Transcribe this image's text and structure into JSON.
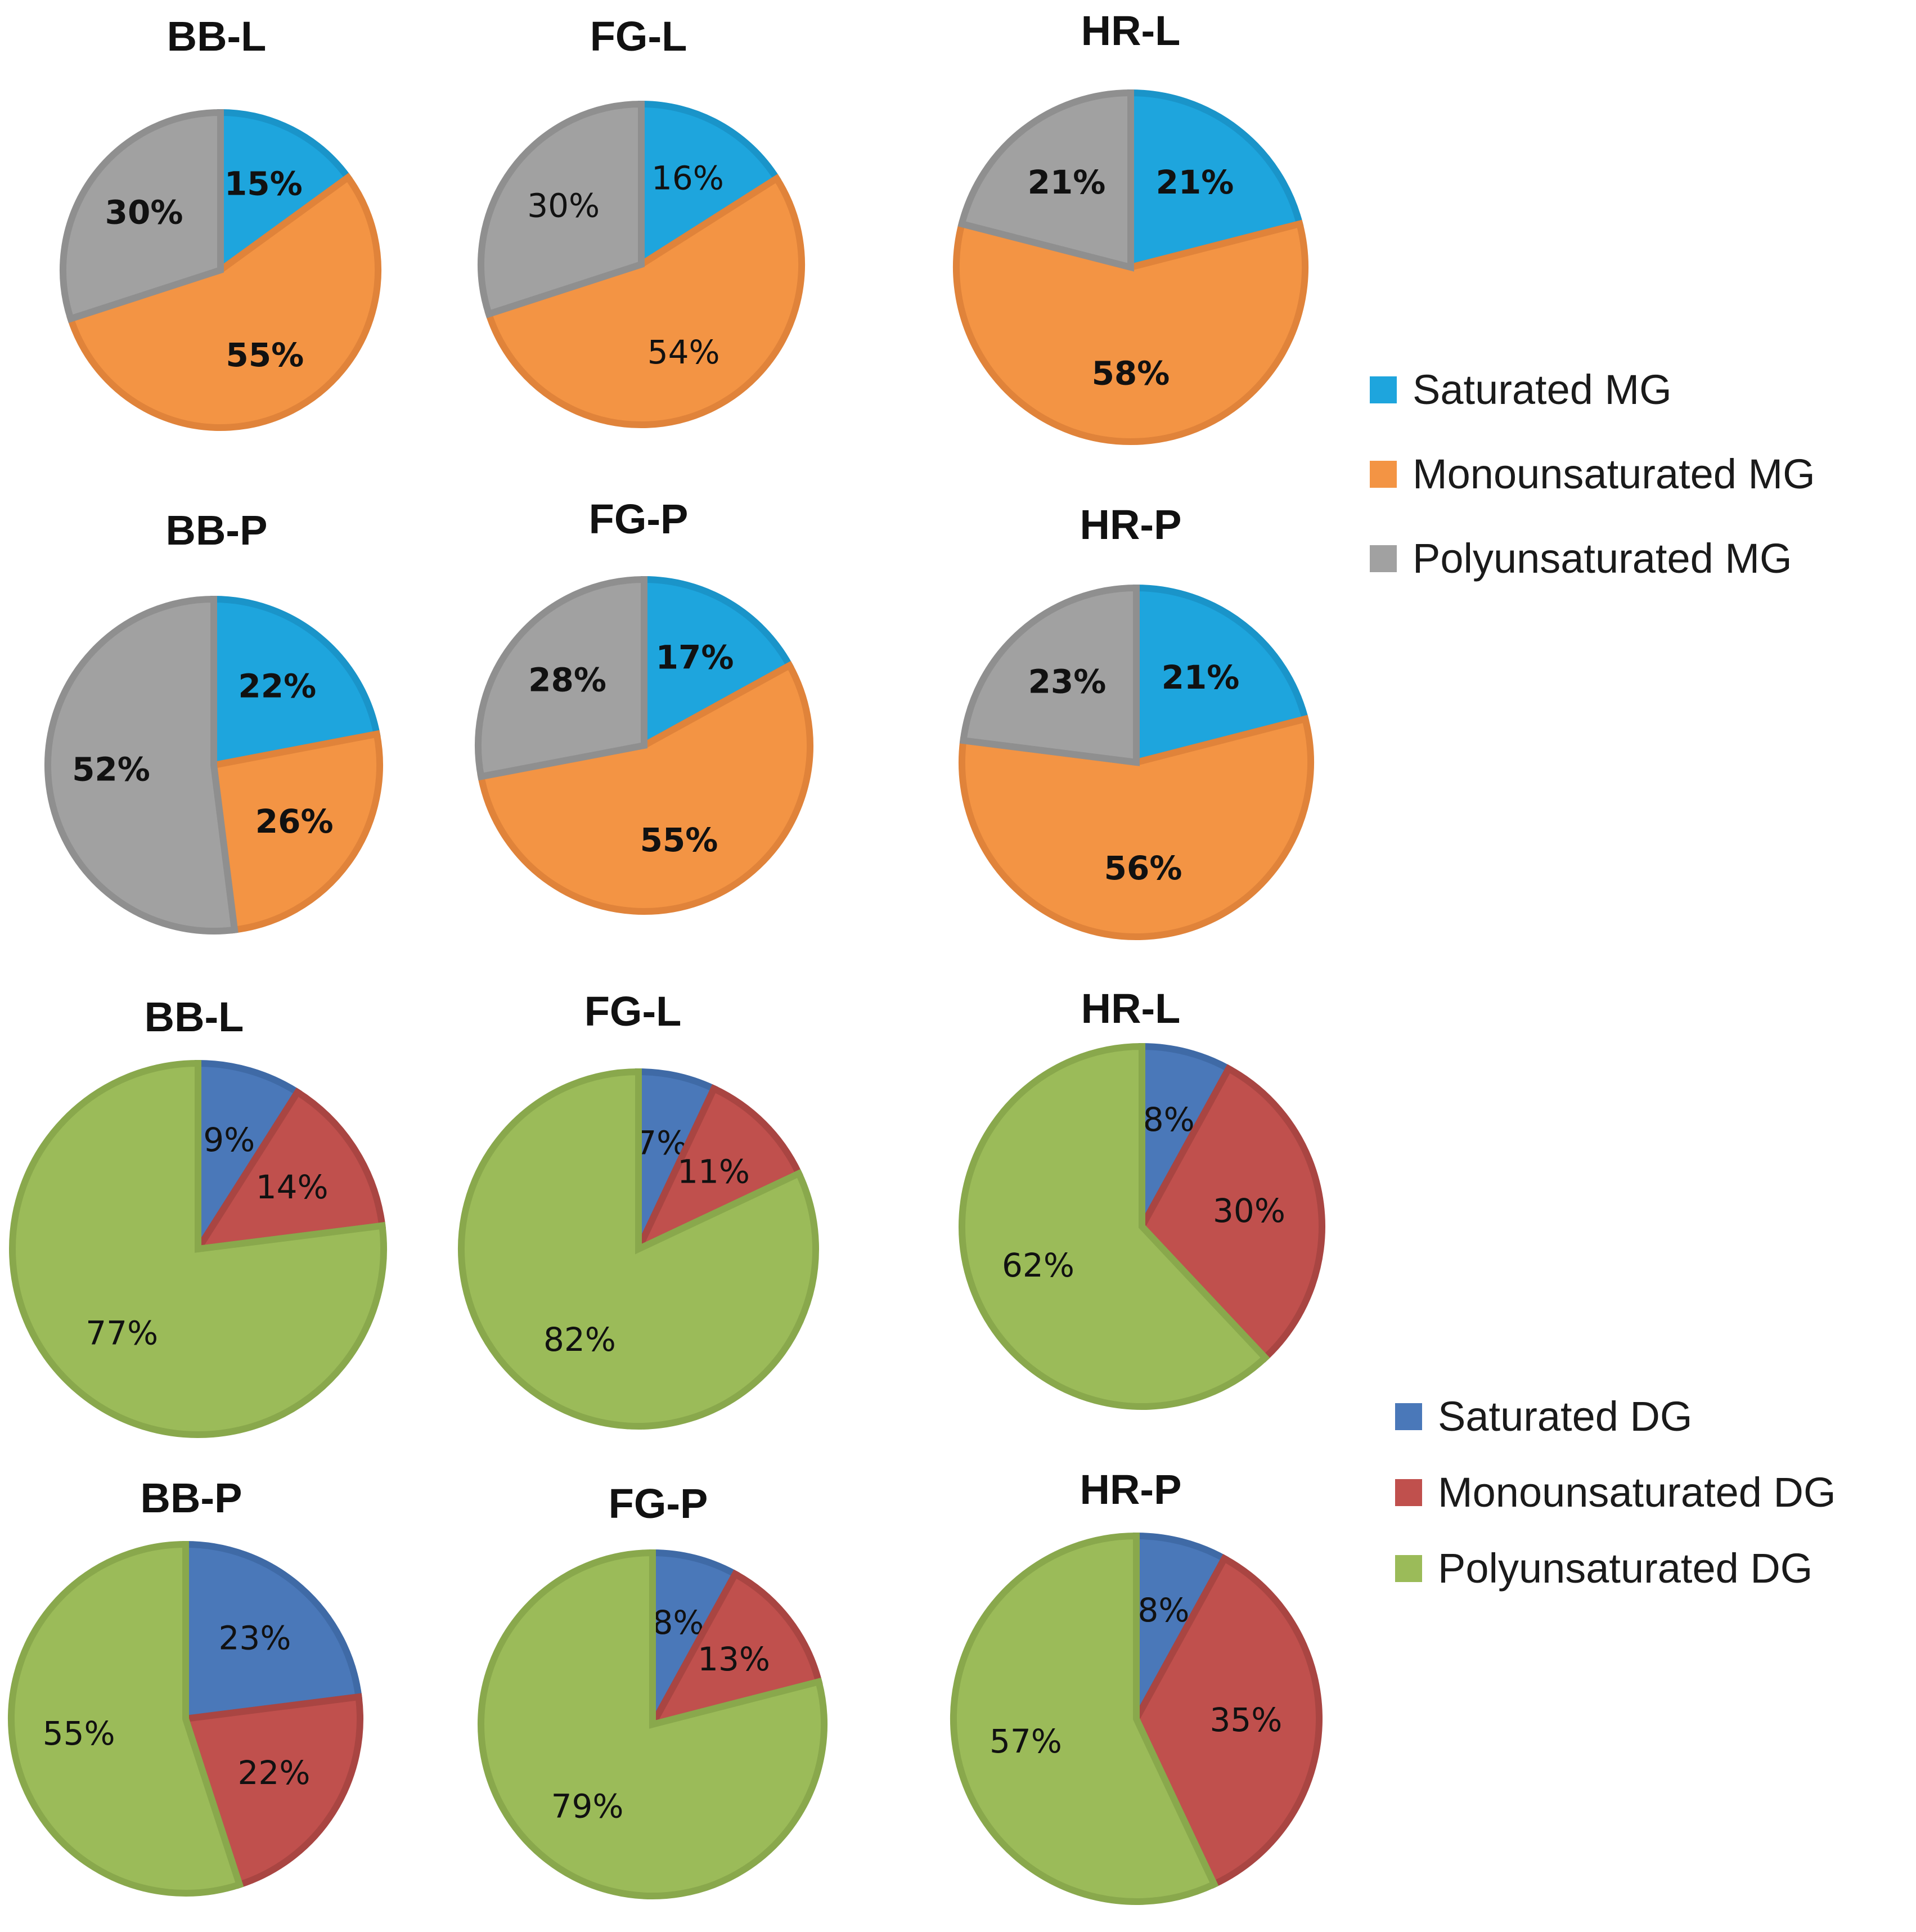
{
  "legends": {
    "mg": [
      {
        "label": "Saturated MG",
        "color": "#1ea5dd"
      },
      {
        "label": "Monounsaturated MG",
        "color": "#f39444"
      },
      {
        "label": "Polyunsaturated MG",
        "color": "#a1a1a1"
      }
    ],
    "dg": [
      {
        "label": "Saturated DG",
        "color": "#4a78b9"
      },
      {
        "label": "Monounsaturated DG",
        "color": "#c0504d"
      },
      {
        "label": "Polyunsaturated DG",
        "color": "#9bbb59"
      }
    ]
  },
  "chart_data": [
    {
      "type": "pie",
      "title": "BB-L",
      "group": "mg",
      "labels": [
        "Saturated MG",
        "Monounsaturated MG",
        "Polyunsaturated MG"
      ],
      "values": [
        15,
        55,
        30
      ],
      "value_labels": [
        "15%",
        "55%",
        "30%"
      ],
      "bold_labels": true
    },
    {
      "type": "pie",
      "title": "FG-L",
      "group": "mg",
      "labels": [
        "Saturated MG",
        "Monounsaturated MG",
        "Polyunsaturated MG"
      ],
      "values": [
        16,
        54,
        30
      ],
      "value_labels": [
        "16%",
        "54%",
        "30%"
      ],
      "bold_labels": false
    },
    {
      "type": "pie",
      "title": "HR-L",
      "group": "mg",
      "labels": [
        "Saturated MG",
        "Monounsaturated MG",
        "Polyunsaturated MG"
      ],
      "values": [
        21,
        58,
        21
      ],
      "value_labels": [
        "21%",
        "58%",
        "21%"
      ],
      "bold_labels": true
    },
    {
      "type": "pie",
      "title": "BB-P",
      "group": "mg",
      "labels": [
        "Saturated MG",
        "Monounsaturated MG",
        "Polyunsaturated MG"
      ],
      "values": [
        22,
        26,
        52
      ],
      "value_labels": [
        "22%",
        "26%",
        "52%"
      ],
      "bold_labels": true
    },
    {
      "type": "pie",
      "title": "FG-P",
      "group": "mg",
      "labels": [
        "Saturated MG",
        "Monounsaturated MG",
        "Polyunsaturated MG"
      ],
      "values": [
        17,
        55,
        28
      ],
      "value_labels": [
        "17%",
        "55%",
        "28%"
      ],
      "bold_labels": true
    },
    {
      "type": "pie",
      "title": "HR-P",
      "group": "mg",
      "labels": [
        "Saturated MG",
        "Monounsaturated MG",
        "Polyunsaturated MG"
      ],
      "values": [
        21,
        56,
        23
      ],
      "value_labels": [
        "21%",
        "56%",
        "23%"
      ],
      "bold_labels": true
    },
    {
      "type": "pie",
      "title": "BB-L",
      "group": "dg",
      "labels": [
        "Saturated DG",
        "Monounsaturated DG",
        "Polyunsaturated DG"
      ],
      "values": [
        9,
        14,
        77
      ],
      "value_labels": [
        "9%",
        "14%",
        "77%"
      ],
      "bold_labels": false
    },
    {
      "type": "pie",
      "title": "FG-L",
      "group": "dg",
      "labels": [
        "Saturated DG",
        "Monounsaturated DG",
        "Polyunsaturated DG"
      ],
      "values": [
        7,
        11,
        82
      ],
      "value_labels": [
        "7%",
        "11%",
        "82%"
      ],
      "bold_labels": false
    },
    {
      "type": "pie",
      "title": "HR-L",
      "group": "dg",
      "labels": [
        "Saturated DG",
        "Monounsaturated DG",
        "Polyunsaturated DG"
      ],
      "values": [
        8,
        30,
        62
      ],
      "value_labels": [
        "8%",
        "30%",
        "62%"
      ],
      "bold_labels": false
    },
    {
      "type": "pie",
      "title": "BB-P",
      "group": "dg",
      "labels": [
        "Saturated DG",
        "Monounsaturated DG",
        "Polyunsaturated DG"
      ],
      "values": [
        23,
        22,
        55
      ],
      "value_labels": [
        "23%",
        "22%",
        "55%"
      ],
      "bold_labels": false
    },
    {
      "type": "pie",
      "title": "FG-P",
      "group": "dg",
      "labels": [
        "Saturated DG",
        "Monounsaturated DG",
        "Polyunsaturated DG"
      ],
      "values": [
        8,
        13,
        79
      ],
      "value_labels": [
        "8%",
        "13%",
        "79%"
      ],
      "bold_labels": false
    },
    {
      "type": "pie",
      "title": "HR-P",
      "group": "dg",
      "labels": [
        "Saturated DG",
        "Monounsaturated DG",
        "Polyunsaturated DG"
      ],
      "values": [
        8,
        35,
        57
      ],
      "value_labels": [
        "8%",
        "35%",
        "57%"
      ],
      "bold_labels": false
    }
  ]
}
